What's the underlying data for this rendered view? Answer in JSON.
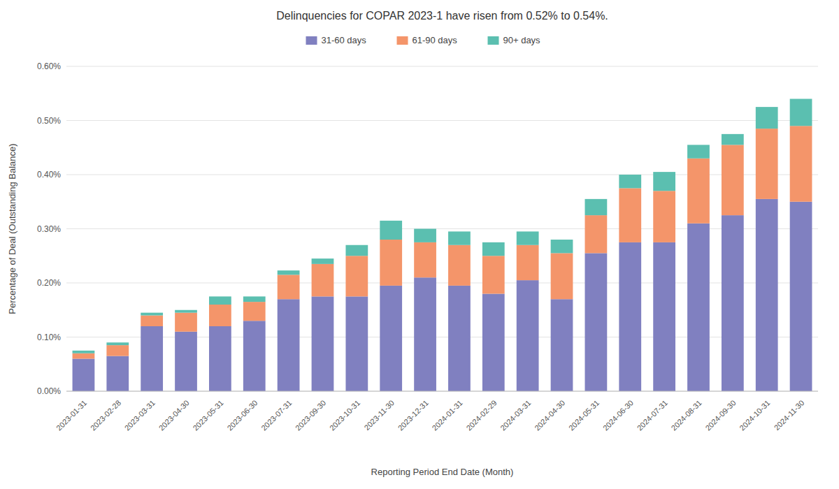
{
  "chart_data": {
    "type": "bar",
    "stacked": true,
    "title": "Delinquencies for COPAR 2023-1 have risen from 0.52% to 0.54%.",
    "x_label": "Reporting Period End Date (Month)",
    "y_label": "Percentage of Deal (Outstanding Balance)",
    "categories": [
      "2023-01-31",
      "2023-02-28",
      "2023-03-31",
      "2023-04-30",
      "2023-05-31",
      "2023-06-30",
      "2023-07-31",
      "2023-09-30",
      "2023-10-31",
      "2023-11-30",
      "2023-12-31",
      "2024-01-31",
      "2024-02-29",
      "2024-03-31",
      "2024-04-30",
      "2024-05-31",
      "2024-06-30",
      "2024-07-31",
      "2024-08-31",
      "2024-09-30",
      "2024-10-31",
      "2024-11-30"
    ],
    "series": [
      {
        "name": "31-60 days",
        "color": "#8080c0",
        "values": [
          0.0006,
          0.00065,
          0.0012,
          0.0011,
          0.0012,
          0.0013,
          0.0017,
          0.00175,
          0.00175,
          0.00195,
          0.0021,
          0.00195,
          0.0018,
          0.00205,
          0.0017,
          0.00255,
          0.00275,
          0.00275,
          0.0031,
          0.00325,
          0.00355,
          0.0035
        ]
      },
      {
        "name": "61-90 days",
        "color": "#f4956a",
        "values": [
          0.0001,
          0.0002,
          0.0002,
          0.00035,
          0.0004,
          0.00035,
          0.00045,
          0.0006,
          0.00075,
          0.00085,
          0.00065,
          0.00075,
          0.0007,
          0.00065,
          0.00085,
          0.0007,
          0.001,
          0.00095,
          0.0012,
          0.0013,
          0.0013,
          0.0014
        ]
      },
      {
        "name": "90+ days",
        "color": "#5bbfb0",
        "values": [
          5e-05,
          5e-05,
          5e-05,
          5e-05,
          0.00015,
          0.0001,
          8e-05,
          0.0001,
          0.0002,
          0.00035,
          0.00025,
          0.00025,
          0.00025,
          0.00025,
          0.00025,
          0.0003,
          0.00025,
          0.00035,
          0.00025,
          0.0002,
          0.0004,
          0.0005
        ]
      }
    ],
    "ylim": [
      0.0,
      0.006
    ],
    "yticks": [
      {
        "value": 0.0,
        "label": "0.00%"
      },
      {
        "value": 0.001,
        "label": "0.10%"
      },
      {
        "value": 0.002,
        "label": "0.20%"
      },
      {
        "value": 0.003,
        "label": "0.30%"
      },
      {
        "value": 0.004,
        "label": "0.40%"
      },
      {
        "value": 0.005,
        "label": "0.50%"
      },
      {
        "value": 0.006,
        "label": "0.60%"
      }
    ],
    "grid": true,
    "legend": "top"
  }
}
